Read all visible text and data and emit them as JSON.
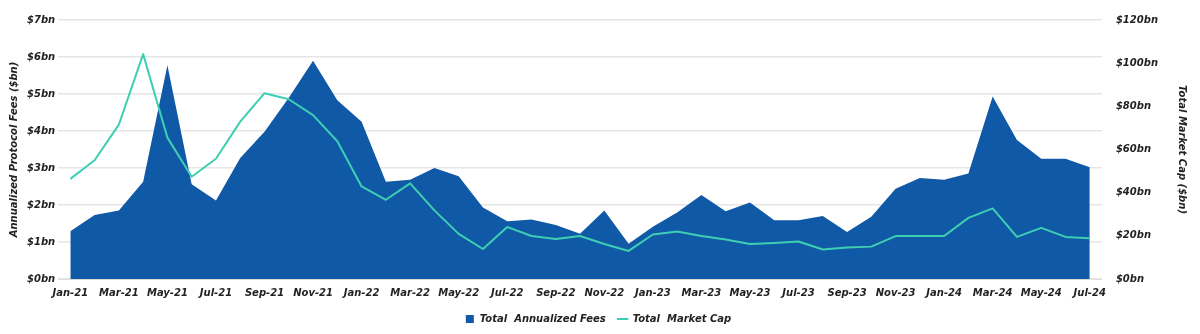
{
  "chart_data": {
    "type": "area",
    "categories": [
      "Jan-21",
      null,
      "Mar-21",
      null,
      "May-21",
      null,
      "Jul-21",
      null,
      "Sep-21",
      null,
      "Nov-21",
      null,
      "Jan-22",
      null,
      "Mar-22",
      null,
      "May-22",
      null,
      "Jul-22",
      null,
      "Sep-22",
      null,
      "Nov-22",
      null,
      "Jan-23",
      null,
      "Mar-23",
      null,
      "May-23",
      null,
      "Jul-23",
      null,
      "Sep-23",
      null,
      "Nov-23",
      null,
      "Jan-24",
      null,
      "Mar-24",
      null,
      "May-24",
      null,
      "Jul-24"
    ],
    "series": [
      {
        "name": "Total  Annualized Fees",
        "color": "#1059a6",
        "values": [
          1.29,
          1.73,
          1.85,
          2.63,
          5.78,
          2.56,
          2.12,
          3.27,
          3.98,
          4.9,
          5.9,
          4.83,
          4.25,
          2.63,
          2.68,
          3.0,
          2.78,
          1.93,
          1.56,
          1.61,
          1.46,
          1.22,
          1.85,
          0.95,
          1.41,
          1.8,
          2.27,
          1.83,
          2.07,
          1.59,
          1.59,
          1.7,
          1.27,
          1.68,
          2.44,
          2.73,
          2.68,
          2.85,
          4.93,
          3.76,
          3.25,
          3.25,
          3.02
        ]
      },
      {
        "name": "Total  Market Cap",
        "type": "line",
        "axis": "y2",
        "color": "#3ecfb2",
        "values": [
          46.4,
          55.0,
          71.5,
          104.2,
          65.5,
          47.4,
          55.7,
          72.9,
          86.1,
          83.3,
          75.9,
          63.8,
          42.9,
          36.7,
          44.3,
          31.8,
          20.9,
          13.9,
          24.1,
          19.9,
          18.5,
          19.9,
          16.2,
          13.0,
          20.6,
          22.0,
          19.9,
          18.3,
          16.2,
          16.7,
          17.4,
          13.7,
          14.6,
          15.0,
          19.9,
          19.9,
          19.9,
          28.3,
          32.7,
          19.5,
          23.7,
          19.5,
          18.9
        ]
      }
    ],
    "ylabel": "Annualized Protocol Fees ($bn)",
    "y2label": "Total Market Cap ($bn)",
    "ylim": [
      0,
      7
    ],
    "yticks": [
      {
        "value": 0,
        "label": "$0bn"
      },
      {
        "value": 1,
        "label": "$1bn"
      },
      {
        "value": 2,
        "label": "$2bn"
      },
      {
        "value": 3,
        "label": "$3bn"
      },
      {
        "value": 4,
        "label": "$4bn"
      },
      {
        "value": 5,
        "label": "$5bn"
      },
      {
        "value": 6,
        "label": "$6bn"
      },
      {
        "value": 7,
        "label": "$7bn"
      }
    ],
    "y2lim": [
      0,
      120
    ],
    "y2ticks": [
      {
        "value": 0,
        "label": "$0bn"
      },
      {
        "value": 20,
        "label": "$20bn"
      },
      {
        "value": 40,
        "label": "$40bn"
      },
      {
        "value": 60,
        "label": "$60bn"
      },
      {
        "value": 80,
        "label": "$80bn"
      },
      {
        "value": 100,
        "label": "$100bn"
      },
      {
        "value": 120,
        "label": "$120bn"
      }
    ],
    "grid": "y",
    "legend": "bottom",
    "marker": "none",
    "line_style": "solid"
  }
}
